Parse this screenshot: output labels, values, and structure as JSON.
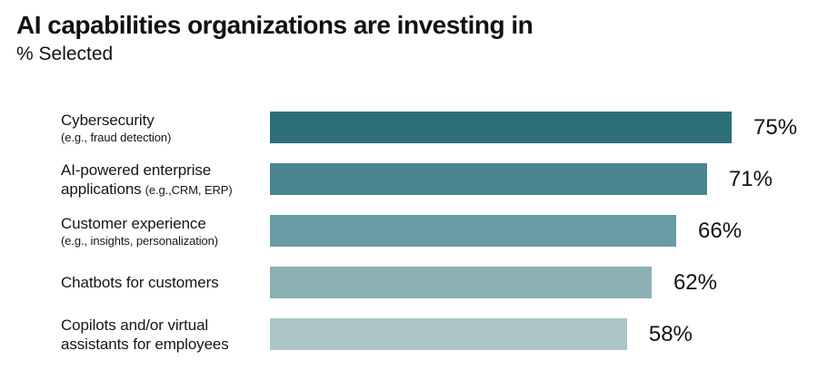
{
  "header": {
    "title": "AI capabilities organizations are investing in",
    "subtitle": "% Selected"
  },
  "chart_data": {
    "type": "bar",
    "orientation": "horizontal",
    "title": "AI capabilities organizations are investing in",
    "subtitle": "% Selected",
    "xlabel": "",
    "ylabel": "",
    "xlim": [
      0,
      75
    ],
    "scale_max": 75,
    "grid": false,
    "legend": false,
    "value_labels_position": "right-of-bar",
    "background": "#FFFFFF",
    "text_color": "#161616",
    "colors": [
      "#2C6F77",
      "#4A868F",
      "#699CA3",
      "#8BAFB5",
      "#ABC5C8"
    ],
    "categories": [
      "Cybersecurity (e.g., fraud detection)",
      "AI-powered enterprise applications (e.g.,CRM, ERP)",
      "Customer experience (e.g., insights, personalization)",
      "Chatbots for customers",
      "Copilots and/or virtual assistants for employees"
    ],
    "values": [
      75,
      71,
      66,
      62,
      58
    ],
    "items": [
      {
        "label": "Cybersecurity",
        "sublabel": "(e.g., fraud detection)",
        "sublabel_layout": "block",
        "value": 75,
        "value_label": "75%"
      },
      {
        "label": "AI-powered enterprise applications",
        "sublabel": "(e.g.,CRM, ERP)",
        "sublabel_layout": "inline",
        "value": 71,
        "value_label": "71%"
      },
      {
        "label": "Customer experience",
        "sublabel": "(e.g., insights, personalization)",
        "sublabel_layout": "block",
        "value": 66,
        "value_label": "66%"
      },
      {
        "label": "Chatbots for customers",
        "sublabel": "",
        "sublabel_layout": "none",
        "value": 62,
        "value_label": "62%"
      },
      {
        "label": "Copilots and/or virtual assistants for employees",
        "sublabel": "",
        "sublabel_layout": "none",
        "value": 58,
        "value_label": "58%"
      }
    ]
  }
}
